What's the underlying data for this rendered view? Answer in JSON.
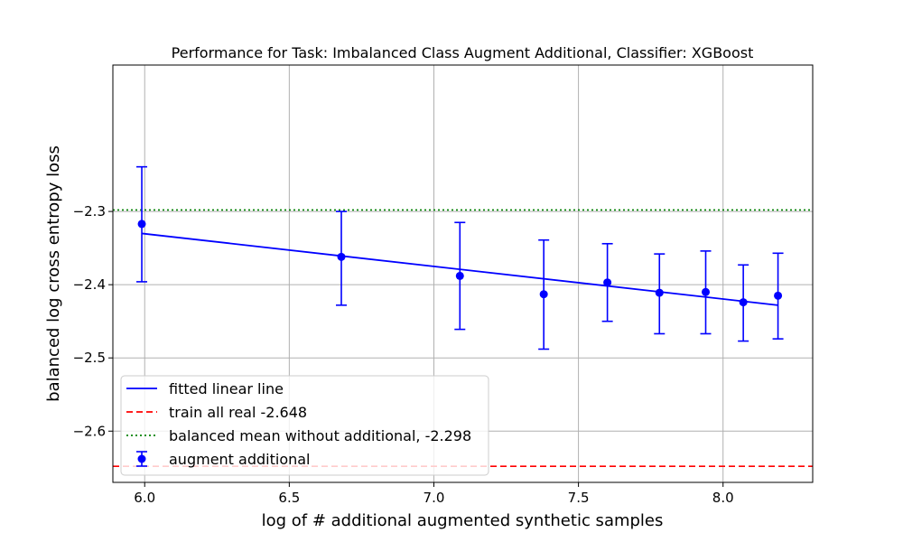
{
  "chart_data": {
    "type": "line",
    "title": "Performance for Task: Imbalanced Class Augment Additional, Classifier: XGBoost",
    "xlabel": "log of # additional augmented synthetic samples",
    "ylabel": "balanced log cross entropy loss",
    "xlim": [
      5.89,
      8.31
    ],
    "ylim": [
      -2.67,
      -2.1
    ],
    "xticks": [
      6.0,
      6.5,
      7.0,
      7.5,
      8.0
    ],
    "xtick_labels": [
      "6.0",
      "6.5",
      "7.0",
      "7.5",
      "8.0"
    ],
    "yticks": [
      -2.3,
      -2.4,
      -2.5,
      -2.6
    ],
    "ytick_labels": [
      "−2.3",
      "−2.4",
      "−2.5",
      "−2.6"
    ],
    "grid": true,
    "legend_position": "lower-left",
    "series": [
      {
        "name": "augment additional",
        "kind": "errorbar",
        "color": "#0000ff",
        "x": [
          5.99,
          6.68,
          7.09,
          7.38,
          7.6,
          7.78,
          7.94,
          8.07,
          8.19
        ],
        "y": [
          -2.317,
          -2.362,
          -2.388,
          -2.413,
          -2.397,
          -2.411,
          -2.41,
          -2.424,
          -2.415
        ],
        "yerr_low": [
          -2.396,
          -2.428,
          -2.461,
          -2.488,
          -2.45,
          -2.467,
          -2.467,
          -2.477,
          -2.474
        ],
        "yerr_high": [
          -2.239,
          -2.3,
          -2.315,
          -2.339,
          -2.344,
          -2.358,
          -2.354,
          -2.373,
          -2.357
        ]
      },
      {
        "name": "fitted linear line",
        "kind": "line",
        "color": "#0000ff",
        "x": [
          5.99,
          8.19
        ],
        "y": [
          -2.33,
          -2.428
        ]
      }
    ],
    "hlines": [
      {
        "name": "train all real -2.648",
        "y": -2.648,
        "color": "#ff0000",
        "style": "dashed"
      },
      {
        "name": "balanced mean without additional, -2.298",
        "y": -2.298,
        "color": "#008000",
        "style": "dotted"
      }
    ],
    "legend": [
      {
        "label": "fitted linear line",
        "kind": "line",
        "color": "#0000ff"
      },
      {
        "label": "train all real -2.648",
        "kind": "dashed",
        "color": "#ff0000"
      },
      {
        "label": "balanced mean without additional, -2.298",
        "kind": "dotted",
        "color": "#008000"
      },
      {
        "label": "augment additional",
        "kind": "errorbar",
        "color": "#0000ff"
      }
    ]
  }
}
